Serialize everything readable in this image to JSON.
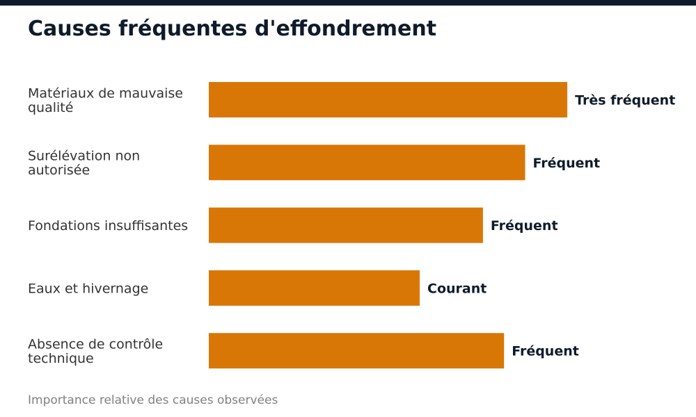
{
  "colors": {
    "top_bar": "#0f1b2a",
    "bar": "#d97706",
    "label": "#333333",
    "value_label": "#0f1b2a"
  },
  "chart_data": {
    "type": "bar",
    "orientation": "horizontal",
    "title": "Causes fréquentes d'effondrement",
    "caption": "Importance relative des causes observées",
    "xlim": [
      0,
      100
    ],
    "grid": false,
    "categories": [
      [
        "Matériaux de mauvaise",
        "qualité"
      ],
      [
        "Surélévation non",
        "autorisée"
      ],
      [
        "Fondations insuffisantes"
      ],
      [
        "Eaux et hivernage"
      ],
      [
        "Absence de contrôle",
        "technique"
      ]
    ],
    "values": [
      85,
      75,
      65,
      50,
      70
    ],
    "data_labels": [
      "Très fréquent",
      "Fréquent",
      "Fréquent",
      "Courant",
      "Fréquent"
    ]
  }
}
